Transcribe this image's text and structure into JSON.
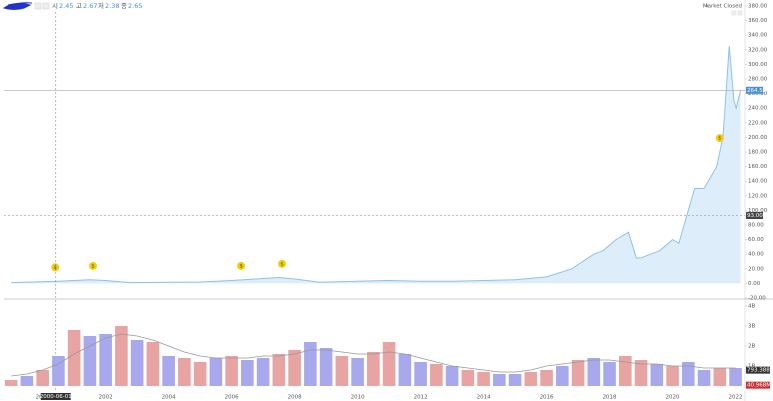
{
  "header": {
    "open_label": "시",
    "open": 2.45,
    "high_label": "고",
    "high": 2.67,
    "low_label": "저",
    "low": 2.38,
    "close_label": "종",
    "close": 2.65,
    "status": "Market Closed"
  },
  "chart_data": [
    {
      "type": "area",
      "color": "#8fc1e8",
      "fill": "#ddeefa",
      "x": [
        1999.0,
        2000.5,
        2001.5,
        2002.0,
        2002.8,
        2004.0,
        2005.0,
        2006.0,
        2007.5,
        2008.0,
        2008.8,
        2010.0,
        2011.0,
        2012.0,
        2013.0,
        2014.0,
        2015.0,
        2016.0,
        2016.8,
        2017.5,
        2017.8,
        2018.2,
        2018.6,
        2018.85,
        2019.0,
        2019.3,
        2019.6,
        2020.0,
        2020.2,
        2020.5,
        2020.7,
        2021.0,
        2021.4,
        2021.6,
        2021.8,
        2021.95,
        2022.02,
        2022.16
      ],
      "values": [
        1,
        3,
        5,
        4,
        1,
        1.5,
        2,
        4,
        8,
        6,
        1.5,
        3,
        4,
        3,
        3,
        4,
        5,
        9,
        20,
        40,
        45,
        60,
        70,
        35,
        35,
        40,
        45,
        60,
        55,
        100,
        130,
        130,
        160,
        200,
        325,
        250,
        240,
        264.53
      ],
      "xlim": [
        1998.9,
        2022.3
      ],
      "ylim": [
        -20,
        380
      ],
      "xticks": [
        2000,
        2002,
        2004,
        2006,
        2008,
        2010,
        2012,
        2014,
        2016,
        2018,
        2020,
        2022
      ],
      "yticks": [
        {
          "value": -20,
          "label": "-20.00"
        },
        {
          "value": 0,
          "label": "0.00"
        },
        {
          "value": 20,
          "label": "20.00"
        },
        {
          "value": 40,
          "label": "40.00"
        },
        {
          "value": 60,
          "label": "60.00"
        },
        {
          "value": 80,
          "label": "80.00"
        },
        {
          "value": 100,
          "label": "100.00"
        },
        {
          "value": 120,
          "label": "120.00"
        },
        {
          "value": 140,
          "label": "140.00"
        },
        {
          "value": 160,
          "label": "160.00"
        },
        {
          "value": 180,
          "label": "180.00"
        },
        {
          "value": 200,
          "label": "200.00"
        },
        {
          "value": 220,
          "label": "220.00"
        },
        {
          "value": 240,
          "label": "240.00"
        },
        {
          "value": 260,
          "label": "260.00"
        },
        {
          "value": 280,
          "label": "280.00"
        },
        {
          "value": 300,
          "label": "300.00"
        },
        {
          "value": 320,
          "label": "320.00"
        },
        {
          "value": 340,
          "label": "340.00"
        },
        {
          "value": 360,
          "label": "360.00"
        },
        {
          "value": 380,
          "label": "380.00"
        }
      ],
      "price_lines": [
        {
          "value": 264.53,
          "label": "264.53",
          "color": "#4a90d9",
          "dashed": false
        },
        {
          "value": 93,
          "label": "93.00",
          "color": "#444444",
          "dashed": true
        }
      ],
      "dividends": {
        "label": "$",
        "x": [
          2000.4,
          2001.6,
          2006.3,
          2007.6,
          2021.5
        ],
        "color": "#f5d000"
      },
      "crosshair": {
        "label": "2000-06-01"
      }
    },
    {
      "type": "bar",
      "x": [
        1999.0,
        1999.5,
        2000.0,
        2000.5,
        2001.0,
        2001.5,
        2002.0,
        2002.5,
        2003.0,
        2003.5,
        2004.0,
        2004.5,
        2005.0,
        2005.5,
        2006.0,
        2006.5,
        2007.0,
        2007.5,
        2008.0,
        2008.5,
        2009.0,
        2009.5,
        2010.0,
        2010.5,
        2011.0,
        2011.5,
        2012.0,
        2012.5,
        2013.0,
        2013.5,
        2014.0,
        2014.5,
        2015.0,
        2015.5,
        2016.0,
        2016.5,
        2017.0,
        2017.5,
        2018.0,
        2018.5,
        2019.0,
        2019.5,
        2020.0,
        2020.5,
        2021.0,
        2021.5,
        2022.0
      ],
      "values": [
        0.3,
        0.5,
        0.8,
        1.5,
        2.8,
        2.5,
        2.6,
        3.0,
        2.3,
        2.2,
        1.5,
        1.4,
        1.2,
        1.4,
        1.5,
        1.3,
        1.4,
        1.6,
        1.8,
        2.2,
        1.9,
        1.5,
        1.4,
        1.7,
        2.2,
        1.6,
        1.2,
        1.1,
        1.0,
        0.8,
        0.7,
        0.6,
        0.6,
        0.7,
        0.8,
        1.0,
        1.3,
        1.4,
        1.2,
        1.5,
        1.3,
        1.1,
        1.0,
        1.2,
        0.8,
        0.9,
        0.9
      ],
      "colors": [
        "#e8a3a3",
        "#a8a8ec",
        "#e8a3a3",
        "#a8a8ec",
        "#e8a3a3",
        "#a8a8ec",
        "#a8a8ec",
        "#e8a3a3",
        "#a8a8ec",
        "#e8a3a3",
        "#a8a8ec",
        "#e8a3a3",
        "#e8a3a3",
        "#a8a8ec",
        "#e8a3a3",
        "#a8a8ec",
        "#a8a8ec",
        "#e8a3a3",
        "#e8a3a3",
        "#a8a8ec",
        "#a8a8ec",
        "#e8a3a3",
        "#a8a8ec",
        "#e8a3a3",
        "#e8a3a3",
        "#a8a8ec",
        "#a8a8ec",
        "#e8a3a3",
        "#a8a8ec",
        "#e8a3a3",
        "#e8a3a3",
        "#a8a8ec",
        "#a8a8ec",
        "#e8a3a3",
        "#e8a3a3",
        "#a8a8ec",
        "#e8a3a3",
        "#a8a8ec",
        "#a8a8ec",
        "#e8a3a3",
        "#e8a3a3",
        "#a8a8ec",
        "#e8a3a3",
        "#a8a8ec",
        "#a8a8ec",
        "#e8a3a3",
        "#a8a8ec"
      ],
      "ma": {
        "color": "#999999",
        "values": [
          0.5,
          0.6,
          0.8,
          1.1,
          1.6,
          2.0,
          2.4,
          2.6,
          2.5,
          2.3,
          2.0,
          1.7,
          1.5,
          1.4,
          1.4,
          1.4,
          1.5,
          1.5,
          1.6,
          1.8,
          1.8,
          1.7,
          1.6,
          1.6,
          1.7,
          1.6,
          1.4,
          1.2,
          1.0,
          0.9,
          0.8,
          0.7,
          0.7,
          0.8,
          1.0,
          1.1,
          1.2,
          1.3,
          1.3,
          1.2,
          1.1,
          1.1,
          1.0,
          1.0,
          0.9,
          0.9,
          0.9
        ]
      },
      "xlim": [
        1998.9,
        2022.3
      ],
      "ylim": [
        -0.2,
        4.3
      ],
      "yticks": [
        {
          "value": 1,
          "label": "1B"
        },
        {
          "value": 2,
          "label": "2B"
        },
        {
          "value": 3,
          "label": "3B"
        },
        {
          "value": 4,
          "label": "4B"
        }
      ],
      "value_tags": [
        {
          "value": 0.793388,
          "label": "793.388M",
          "color": "#333333"
        },
        {
          "value": 0.040968,
          "label": "40.968M",
          "color": "#d03030"
        }
      ]
    }
  ]
}
